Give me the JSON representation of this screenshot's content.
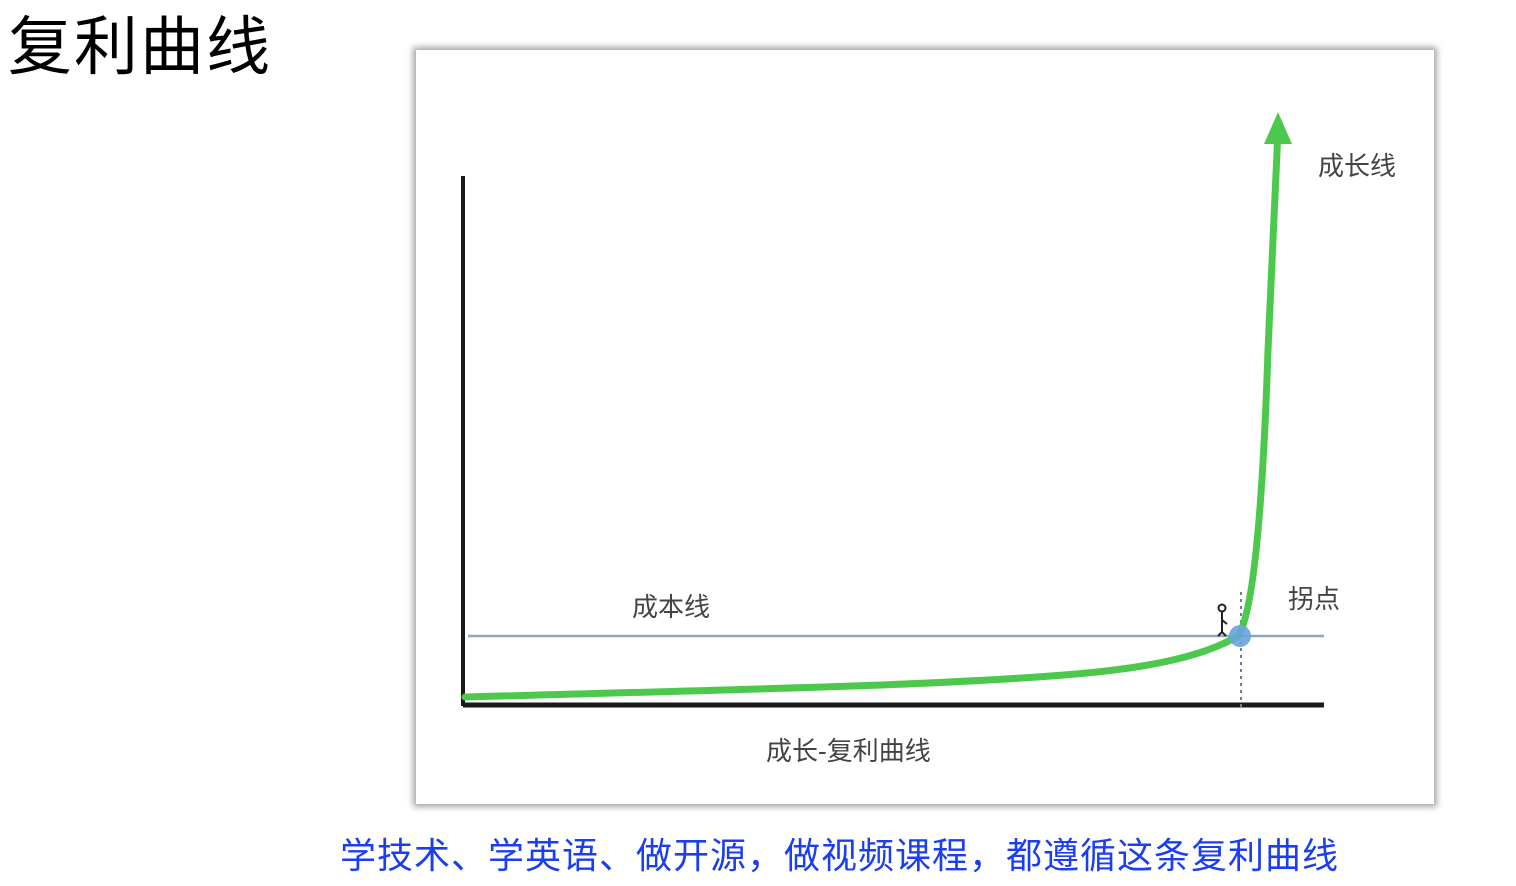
{
  "page": {
    "title": "复利曲线",
    "caption": "学技术、学英语、做开源，做视频课程，都遵循这条复利曲线"
  },
  "diagram": {
    "growth_line_label": "成长线",
    "cost_line_label": "成本线",
    "inflection_label": "拐点",
    "bottom_label": "成长-复利曲线"
  },
  "colors": {
    "growth_curve": "#4cc94c",
    "cost_line": "#8aa8c0",
    "inflection_dot": "#6aa4dc",
    "caption": "#1a3ef0",
    "axes": "#1a1a1a"
  },
  "icons": {
    "figure_marker": "person-with-flag-icon"
  }
}
